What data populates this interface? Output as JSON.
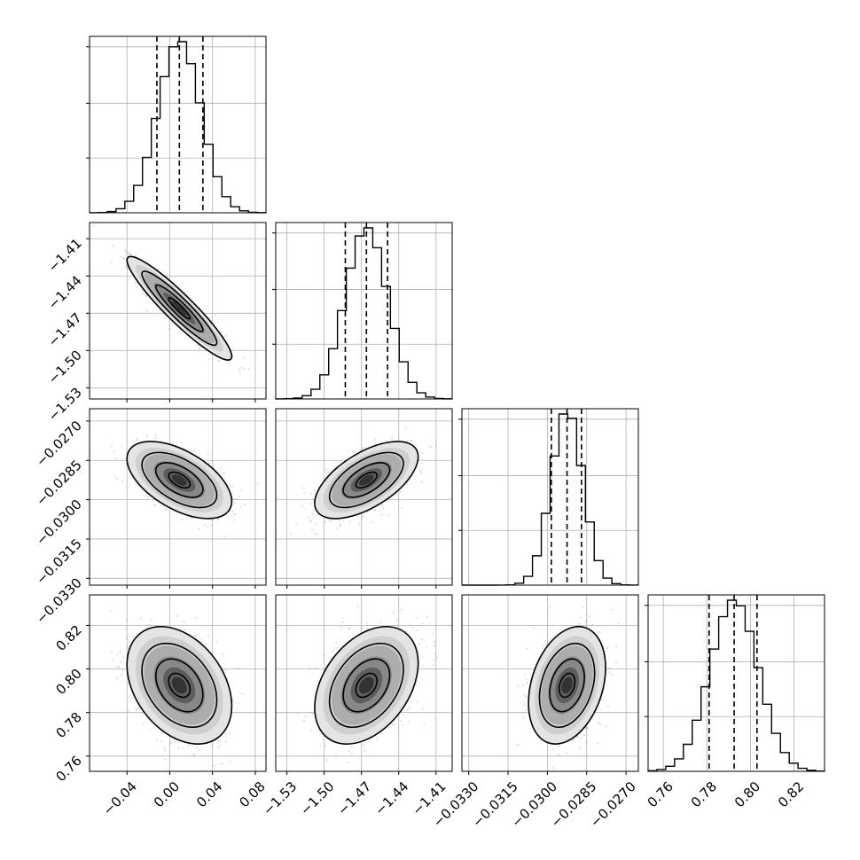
{
  "chart_data": {
    "type": "corner",
    "n_params": 4,
    "grid": true,
    "quantiles_shown": [
      0.16,
      0.5,
      0.84
    ],
    "parameters": [
      {
        "median": 0.009,
        "std": 0.02,
        "q16": -0.012,
        "q84": 0.031,
        "range": [
          -0.075,
          0.09
        ],
        "ticks": [
          -0.04,
          0.0,
          0.04,
          0.08
        ],
        "tick_labels": [
          "−0.04",
          "0.00",
          "0.04",
          "0.08"
        ]
      },
      {
        "median": -1.466,
        "std": 0.017,
        "q16": -1.483,
        "q84": -1.449,
        "range": [
          -1.539,
          -1.397
        ],
        "ticks": [
          -1.53,
          -1.5,
          -1.47,
          -1.44,
          -1.41
        ],
        "tick_labels": [
          "−1.53",
          "−1.50",
          "−1.47",
          "−1.44",
          "−1.41"
        ]
      },
      {
        "median": -0.02925,
        "std": 0.0006,
        "q16": -0.02985,
        "q84": -0.0287,
        "range": [
          -0.03326,
          -0.02653
        ],
        "ticks": [
          -0.033,
          -0.0315,
          -0.03,
          -0.0285,
          -0.027
        ],
        "tick_labels": [
          "−0.0330",
          "−0.0315",
          "−0.0300",
          "−0.0285",
          "−0.0270"
        ]
      },
      {
        "median": 0.7925,
        "std": 0.011,
        "q16": 0.781,
        "q84": 0.803,
        "range": [
          0.753,
          0.834
        ],
        "ticks": [
          0.76,
          0.78,
          0.8,
          0.82
        ],
        "tick_labels": [
          "0.76",
          "0.78",
          "0.80",
          "0.82"
        ]
      }
    ],
    "correlations": [
      {
        "pair": [
          0,
          1
        ],
        "rho": -0.93
      },
      {
        "pair": [
          0,
          2
        ],
        "rho": -0.55
      },
      {
        "pair": [
          1,
          2
        ],
        "rho": 0.6
      },
      {
        "pair": [
          0,
          3
        ],
        "rho": -0.35
      },
      {
        "pair": [
          1,
          3
        ],
        "rho": 0.38
      },
      {
        "pair": [
          2,
          3
        ],
        "rho": 0.3
      }
    ],
    "style": {
      "line_color": "#000000",
      "point_color": "#7f7f7f",
      "grid_color": "#b0b0b0"
    }
  }
}
